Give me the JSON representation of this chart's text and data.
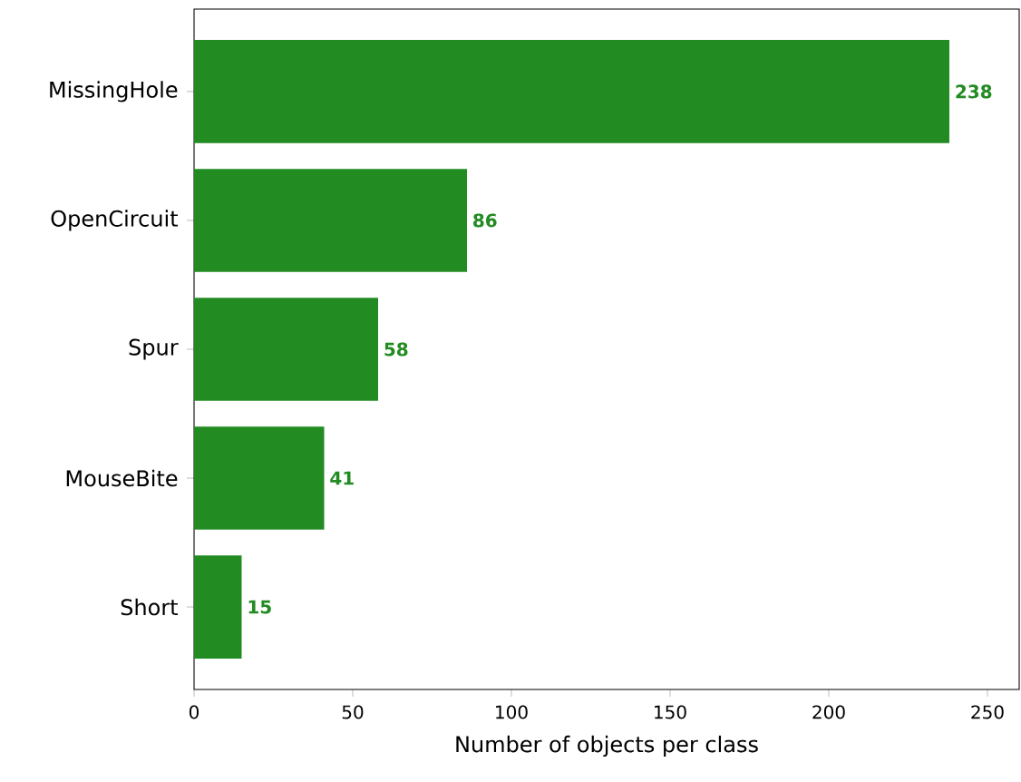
{
  "chart_data": {
    "type": "bar",
    "orientation": "horizontal",
    "xlabel": "Number of objects per class",
    "categories": [
      "MissingHole",
      "OpenCircuit",
      "Spur",
      "MouseBite",
      "Short"
    ],
    "values": [
      238,
      86,
      58,
      41,
      15
    ],
    "color": "#228b22",
    "data_labels": true,
    "xlim": [
      0,
      260
    ],
    "xticks": [
      0,
      50,
      100,
      150,
      200,
      250
    ]
  }
}
